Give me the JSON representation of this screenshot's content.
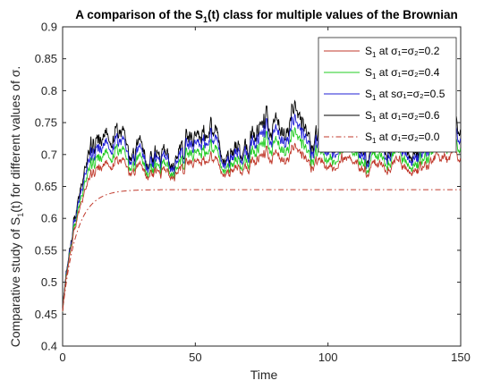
{
  "chart_data": {
    "type": "line",
    "title": "A comparison of the S1(t) class for multiple values of the Brownian",
    "title_parts": {
      "before": "A comparison of the S",
      "sub": "1",
      "after": "(t) class for multiple values of the Brownian"
    },
    "xlabel": "Time",
    "ylabel_parts": {
      "before": "Comparative study of S",
      "sub": "1",
      "after": "(t) for different values of σ."
    },
    "xlim": [
      0,
      150
    ],
    "ylim": [
      0.4,
      0.9
    ],
    "xticks": [
      0,
      50,
      100,
      150
    ],
    "yticks": [
      0.4,
      0.45,
      0.5,
      0.55,
      0.6,
      0.65,
      0.7,
      0.75,
      0.8,
      0.85,
      0.9
    ],
    "ytick_labels": [
      "0.4",
      "0.45",
      "0.5",
      "0.55",
      "0.6",
      "0.65",
      "0.7",
      "0.75",
      "0.8",
      "0.85",
      "0.9"
    ],
    "grid": false,
    "legend_position": "top-right",
    "deterministic_equilibrium": 0.645,
    "series": [
      {
        "label": {
          "s": "S",
          "sub": "1",
          "mid": " at ",
          "params": "σ₁=σ₂=0.2"
        },
        "sigma": 0.2,
        "color": "#c0392b",
        "dash": "solid",
        "noise_scale": 0.55,
        "plateau": 0.688
      },
      {
        "label": {
          "s": "S",
          "sub": "1",
          "mid": " at ",
          "params": "σ₁=σ₂=0.4"
        },
        "sigma": 0.4,
        "color": "#22cc22",
        "dash": "solid",
        "noise_scale": 0.75,
        "plateau": 0.702
      },
      {
        "label": {
          "s": "S",
          "sub": "1",
          "mid": " at s",
          "params": "σ₁=σ₂=0.5"
        },
        "sigma": 0.5,
        "color": "#1f1fd6",
        "dash": "solid",
        "noise_scale": 0.88,
        "plateau": 0.716
      },
      {
        "label": {
          "s": "S",
          "sub": "1",
          "mid": " at ",
          "params": "σ₁=σ₂=0.6"
        },
        "sigma": 0.6,
        "color": "#000000",
        "dash": "solid",
        "noise_scale": 1.05,
        "plateau": 0.728
      },
      {
        "label": {
          "s": "S",
          "sub": "1",
          "mid": " at ",
          "params": "σ₁=σ₂=0.0"
        },
        "sigma": 0.0,
        "color": "#c0392b",
        "dash": "dashdot",
        "noise_scale": 0.0,
        "plateau": 0.645
      }
    ]
  }
}
